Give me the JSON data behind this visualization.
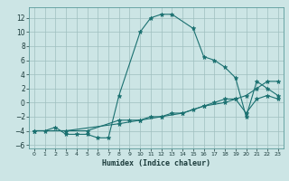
{
  "xlabel": "Humidex (Indice chaleur)",
  "xlim": [
    -0.5,
    23.5
  ],
  "ylim": [
    -6.5,
    13.5
  ],
  "xticks": [
    0,
    1,
    2,
    3,
    4,
    5,
    6,
    7,
    8,
    9,
    10,
    11,
    12,
    13,
    14,
    15,
    16,
    17,
    18,
    19,
    20,
    21,
    22,
    23
  ],
  "yticks": [
    -6,
    -4,
    -2,
    0,
    2,
    4,
    6,
    8,
    10,
    12
  ],
  "bg_color": "#cce5e5",
  "line_color": "#1a7070",
  "curves": [
    {
      "x": [
        0,
        1,
        2,
        3,
        4,
        5,
        6,
        7,
        8,
        10,
        11,
        12,
        13,
        15,
        16,
        17,
        18,
        19,
        20,
        21,
        22,
        23
      ],
      "y": [
        -4,
        -4,
        -3.5,
        -4.5,
        -4.5,
        -4.5,
        -5,
        -5,
        1,
        10,
        12,
        12.5,
        12.5,
        10.5,
        6.5,
        6,
        5,
        3.5,
        -2,
        3,
        2,
        1
      ]
    },
    {
      "x": [
        0,
        3,
        5,
        8,
        9,
        10,
        11,
        12,
        13,
        14,
        15,
        16,
        17,
        18,
        19,
        20,
        21,
        22,
        23
      ],
      "y": [
        -4,
        -4,
        -4,
        -2.5,
        -2.5,
        -2.5,
        -2,
        -2,
        -1.5,
        -1.5,
        -1,
        -0.5,
        0,
        0.5,
        0.5,
        1,
        2,
        3,
        3
      ]
    },
    {
      "x": [
        0,
        3,
        8,
        10,
        12,
        14,
        16,
        18,
        19,
        20,
        21,
        22,
        23
      ],
      "y": [
        -4,
        -4,
        -3,
        -2.5,
        -2,
        -1.5,
        -0.5,
        0,
        0.5,
        -1.5,
        0.5,
        1,
        0.5
      ]
    }
  ]
}
